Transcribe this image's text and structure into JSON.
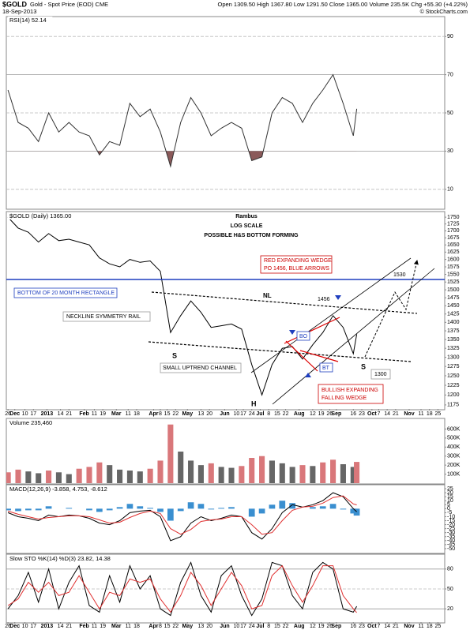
{
  "header": {
    "symbol": "$GOLD",
    "name": "Gold - Spot Price (EOD) CME",
    "date": "18-Sep-2013",
    "quote": "Open 1309.50 High 1367.80 Low 1291.50 Close 1365.00 Volume 235.5K Chg +55.30 (+4.22%)",
    "copyright": "© StockCharts.com"
  },
  "chart_data": [
    {
      "type": "line",
      "label": "RSI(14) 52.14",
      "xlim": [
        -1,
        258
      ],
      "x": [
        0,
        6,
        12,
        18,
        24,
        30,
        36,
        42,
        48,
        54,
        60,
        66,
        72,
        78,
        84,
        90,
        96,
        102,
        108,
        114,
        120,
        126,
        132,
        138,
        144,
        150,
        156,
        162,
        168,
        174,
        180,
        186,
        192,
        198,
        204,
        206
      ],
      "series": [
        {
          "name": "RSI(14)",
          "color": "#333333",
          "fill_color": "#8b5a5a",
          "values": [
            62,
            45,
            42,
            35,
            50,
            40,
            45,
            40,
            38,
            28,
            35,
            33,
            55,
            48,
            52,
            40,
            22,
            45,
            58,
            50,
            38,
            42,
            45,
            42,
            25,
            27,
            50,
            58,
            55,
            45,
            55,
            62,
            70,
            55,
            38,
            52.14
          ]
        }
      ],
      "ylim": [
        0,
        100
      ],
      "yticks": [
        10,
        30,
        50,
        70,
        90
      ],
      "bands": [
        30,
        70
      ],
      "grid": true
    },
    {
      "type": "line",
      "label": "$GOLD (Daily) 1365.00",
      "log_scale": true,
      "xlim": [
        -1,
        258
      ],
      "x": [
        0,
        6,
        12,
        18,
        24,
        30,
        36,
        42,
        48,
        54,
        60,
        66,
        72,
        78,
        84,
        90,
        96,
        102,
        108,
        114,
        120,
        126,
        132,
        138,
        144,
        150,
        156,
        162,
        168,
        174,
        180,
        186,
        192,
        198,
        204,
        206
      ],
      "series": [
        {
          "name": "$GOLD",
          "color": "#000000",
          "values": [
            1750,
            1710,
            1695,
            1660,
            1690,
            1665,
            1670,
            1660,
            1650,
            1605,
            1585,
            1575,
            1600,
            1590,
            1595,
            1560,
            1370,
            1420,
            1465,
            1430,
            1385,
            1390,
            1395,
            1380,
            1280,
            1200,
            1280,
            1325,
            1330,
            1295,
            1335,
            1370,
            1420,
            1385,
            1310,
            1365
          ]
        }
      ],
      "ylim": [
        1165,
        1765
      ],
      "yticks": [
        1175,
        1200,
        1225,
        1250,
        1275,
        1300,
        1325,
        1350,
        1375,
        1400,
        1425,
        1450,
        1475,
        1500,
        1525,
        1550,
        1575,
        1600,
        1625,
        1650,
        1675,
        1700,
        1725,
        1750
      ],
      "annotations": [
        "Rambus",
        "LOG SCALE",
        "POSSIBLE H&S BOTTOM FORMING",
        "RED EXPANDING WEDGE",
        "PO 1456, BLUE ARROWS",
        "BOTTOM OF 20 MONTH RECTANGLE",
        "NECKLINE SYMMETRY RAIL",
        "NL",
        "1456",
        "1530",
        "S",
        "S",
        "H",
        "BO",
        "BT",
        "SMALL UPTREND CHANNEL",
        "BULLISH EXPANDING",
        "FALLING WEDGE",
        "1300"
      ],
      "xticks": [
        {
          "value": 0,
          "label": "26"
        },
        {
          "value": 4,
          "label": "Dec"
        },
        {
          "value": 10,
          "label": "10"
        },
        {
          "value": 15,
          "label": "17"
        },
        {
          "value": 23,
          "label": "2013"
        },
        {
          "value": 31,
          "label": "14"
        },
        {
          "value": 36,
          "label": "21"
        },
        {
          "value": 45,
          "label": "Feb"
        },
        {
          "value": 51,
          "label": "11"
        },
        {
          "value": 56,
          "label": "19"
        },
        {
          "value": 64,
          "label": "Mar"
        },
        {
          "value": 71,
          "label": "11"
        },
        {
          "value": 76,
          "label": "18"
        },
        {
          "value": 86,
          "label": "Apr"
        },
        {
          "value": 90,
          "label": "8"
        },
        {
          "value": 94,
          "label": "15"
        },
        {
          "value": 99,
          "label": "22"
        },
        {
          "value": 106,
          "label": "May"
        },
        {
          "value": 114,
          "label": "13"
        },
        {
          "value": 119,
          "label": "20"
        },
        {
          "value": 128,
          "label": "Jun"
        },
        {
          "value": 135,
          "label": "10"
        },
        {
          "value": 139,
          "label": "17"
        },
        {
          "value": 144,
          "label": "24"
        },
        {
          "value": 149,
          "label": "Jul"
        },
        {
          "value": 154,
          "label": "8"
        },
        {
          "value": 159,
          "label": "15"
        },
        {
          "value": 164,
          "label": "22"
        },
        {
          "value": 172,
          "label": "Aug"
        },
        {
          "value": 180,
          "label": "12"
        },
        {
          "value": 185,
          "label": "19"
        },
        {
          "value": 190,
          "label": "26"
        },
        {
          "value": 194,
          "label": "Sep"
        },
        {
          "value": 204,
          "label": "16"
        },
        {
          "value": 209,
          "label": "23"
        },
        {
          "value": 215,
          "label": "Oct"
        },
        {
          "value": 219,
          "label": "7"
        },
        {
          "value": 224,
          "label": "14"
        },
        {
          "value": 229,
          "label": "21"
        },
        {
          "value": 237,
          "label": "Nov"
        },
        {
          "value": 244,
          "label": "11"
        },
        {
          "value": 249,
          "label": "18"
        },
        {
          "value": 254,
          "label": "25"
        }
      ]
    },
    {
      "type": "bar",
      "label": "Volume 235,460",
      "xlim": [
        -1,
        258
      ],
      "x": [
        0,
        6,
        12,
        18,
        24,
        30,
        36,
        42,
        48,
        54,
        60,
        66,
        72,
        78,
        84,
        90,
        96,
        102,
        108,
        114,
        120,
        126,
        132,
        138,
        144,
        150,
        156,
        162,
        168,
        174,
        180,
        186,
        192,
        198,
        204,
        206
      ],
      "series": [
        {
          "name": "Volume",
          "color": "#d9777a",
          "down_color": "#666666",
          "values": [
            120000,
            150000,
            130000,
            110000,
            140000,
            120000,
            100000,
            160000,
            180000,
            230000,
            200000,
            150000,
            140000,
            130000,
            160000,
            250000,
            650000,
            350000,
            250000,
            200000,
            220000,
            180000,
            170000,
            190000,
            280000,
            300000,
            250000,
            220000,
            180000,
            200000,
            190000,
            230000,
            260000,
            210000,
            180000,
            235460
          ]
        }
      ],
      "ylim": [
        0,
        700000
      ],
      "yticks": [
        {
          "value": 100000,
          "label": "100K"
        },
        {
          "value": 200000,
          "label": "200K"
        },
        {
          "value": 300000,
          "label": "300K"
        },
        {
          "value": 400000,
          "label": "400K"
        },
        {
          "value": 500000,
          "label": "500K"
        },
        {
          "value": 600000,
          "label": "600K"
        }
      ]
    },
    {
      "type": "macd",
      "label": "MACD(12,26,9) -3.858, 4.753, -8.612",
      "xlim": [
        -1,
        258
      ],
      "x": [
        0,
        6,
        12,
        18,
        24,
        30,
        36,
        42,
        48,
        54,
        60,
        66,
        72,
        78,
        84,
        90,
        96,
        102,
        108,
        114,
        120,
        126,
        132,
        138,
        144,
        150,
        156,
        162,
        168,
        174,
        180,
        186,
        192,
        198,
        204,
        206
      ],
      "series": [
        {
          "name": "MACD",
          "color": "#000000",
          "values": [
            -5,
            -10,
            -12,
            -15,
            -8,
            -10,
            -8,
            -9,
            -12,
            -18,
            -20,
            -15,
            -5,
            -3,
            -2,
            -10,
            -40,
            -35,
            -18,
            -10,
            -15,
            -12,
            -8,
            -10,
            -30,
            -38,
            -25,
            -5,
            5,
            2,
            5,
            10,
            20,
            15,
            0,
            -3.858
          ]
        },
        {
          "name": "Signal",
          "color": "#e03030",
          "values": [
            -3,
            -7,
            -10,
            -13,
            -11,
            -10,
            -9,
            -9,
            -10,
            -14,
            -18,
            -17,
            -11,
            -6,
            -3,
            -6,
            -25,
            -32,
            -26,
            -16,
            -14,
            -13,
            -10,
            -10,
            -20,
            -32,
            -30,
            -15,
            -2,
            2,
            3,
            7,
            14,
            16,
            6,
            4.753
          ]
        },
        {
          "name": "Histogram",
          "color": "#3a8fd0",
          "values": [
            -2,
            -3,
            -2,
            -2,
            3,
            0,
            1,
            0,
            -2,
            -4,
            -2,
            2,
            6,
            3,
            1,
            -4,
            -15,
            -3,
            8,
            6,
            -1,
            1,
            2,
            0,
            -10,
            -6,
            5,
            10,
            7,
            0,
            2,
            3,
            6,
            -1,
            -6,
            -8.612
          ]
        }
      ],
      "ylim": [
        -55,
        28
      ],
      "yticks": [
        -50,
        -45,
        -40,
        -35,
        -30,
        -25,
        -20,
        -15,
        -10,
        -5,
        0,
        5,
        10,
        15,
        20,
        25
      ]
    },
    {
      "type": "line",
      "label": "Slow STO %K(14) %D(3) 23.82, 14.38",
      "xlim": [
        -1,
        258
      ],
      "x": [
        0,
        6,
        12,
        18,
        24,
        30,
        36,
        42,
        48,
        54,
        60,
        66,
        72,
        78,
        84,
        90,
        96,
        102,
        108,
        114,
        120,
        126,
        132,
        138,
        144,
        150,
        156,
        162,
        168,
        174,
        180,
        186,
        192,
        198,
        204,
        206
      ],
      "series": [
        {
          "name": "%K",
          "color": "#000000",
          "values": [
            20,
            40,
            75,
            30,
            80,
            20,
            60,
            85,
            25,
            15,
            70,
            30,
            85,
            50,
            70,
            20,
            10,
            60,
            90,
            40,
            15,
            70,
            85,
            40,
            10,
            35,
            90,
            85,
            40,
            20,
            75,
            90,
            80,
            20,
            15,
            23.82
          ]
        },
        {
          "name": "%D",
          "color": "#e03030",
          "values": [
            25,
            35,
            60,
            45,
            60,
            40,
            45,
            70,
            45,
            20,
            45,
            40,
            65,
            60,
            65,
            35,
            15,
            40,
            75,
            55,
            25,
            50,
            75,
            55,
            20,
            25,
            70,
            85,
            55,
            30,
            55,
            85,
            85,
            40,
            20,
            14.38
          ]
        }
      ],
      "ylim": [
        0,
        100
      ],
      "yticks": [
        20,
        50,
        80
      ],
      "bands": [
        20,
        80
      ],
      "grid": true,
      "xticks": [
        {
          "value": 0,
          "label": "26"
        },
        {
          "value": 4,
          "label": "Dec"
        },
        {
          "value": 10,
          "label": "10"
        },
        {
          "value": 15,
          "label": "17"
        },
        {
          "value": 23,
          "label": "2013"
        },
        {
          "value": 31,
          "label": "14"
        },
        {
          "value": 36,
          "label": "21"
        },
        {
          "value": 45,
          "label": "Feb"
        },
        {
          "value": 51,
          "label": "11"
        },
        {
          "value": 56,
          "label": "19"
        },
        {
          "value": 64,
          "label": "Mar"
        },
        {
          "value": 71,
          "label": "11"
        },
        {
          "value": 76,
          "label": "18"
        },
        {
          "value": 86,
          "label": "Apr"
        },
        {
          "value": 90,
          "label": "8"
        },
        {
          "value": 94,
          "label": "15"
        },
        {
          "value": 99,
          "label": "22"
        },
        {
          "value": 106,
          "label": "May"
        },
        {
          "value": 114,
          "label": "13"
        },
        {
          "value": 119,
          "label": "20"
        },
        {
          "value": 128,
          "label": "Jun"
        },
        {
          "value": 135,
          "label": "10"
        },
        {
          "value": 139,
          "label": "17"
        },
        {
          "value": 144,
          "label": "24"
        },
        {
          "value": 149,
          "label": "Jul"
        },
        {
          "value": 154,
          "label": "8"
        },
        {
          "value": 159,
          "label": "15"
        },
        {
          "value": 164,
          "label": "22"
        },
        {
          "value": 172,
          "label": "Aug"
        },
        {
          "value": 180,
          "label": "12"
        },
        {
          "value": 185,
          "label": "19"
        },
        {
          "value": 190,
          "label": "26"
        },
        {
          "value": 194,
          "label": "Sep"
        },
        {
          "value": 204,
          "label": "16"
        },
        {
          "value": 209,
          "label": "23"
        },
        {
          "value": 215,
          "label": "Oct"
        },
        {
          "value": 219,
          "label": "7"
        },
        {
          "value": 224,
          "label": "14"
        },
        {
          "value": 229,
          "label": "21"
        },
        {
          "value": 237,
          "label": "Nov"
        },
        {
          "value": 244,
          "label": "11"
        },
        {
          "value": 249,
          "label": "18"
        },
        {
          "value": 254,
          "label": "25"
        }
      ]
    }
  ]
}
